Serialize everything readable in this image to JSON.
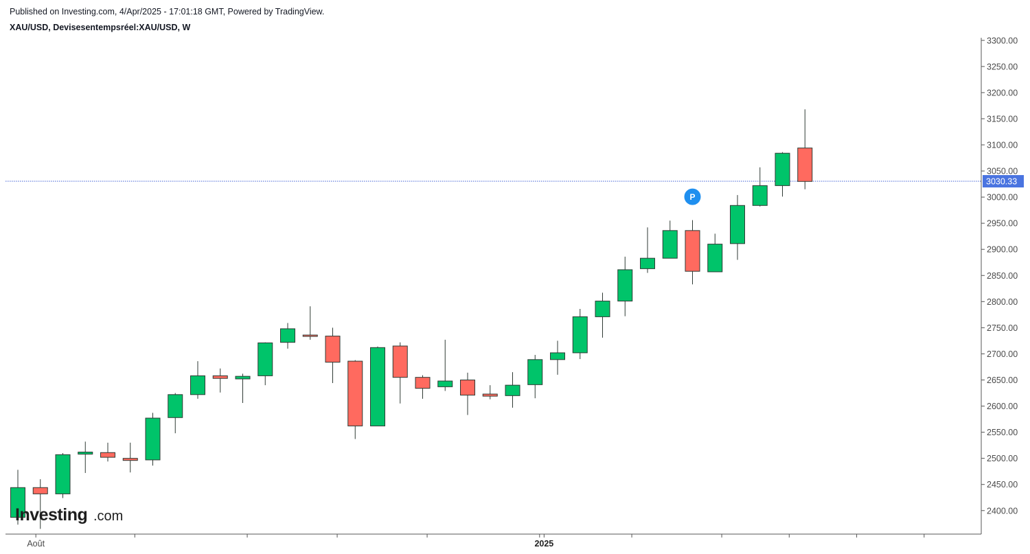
{
  "header": {
    "published": "Published on Investing.com, 4/Apr/2025 - 17:01:18 GMT, Powered by TradingView.",
    "symbol": "XAU/USD, Devisesentempsréel:XAU/USD, W"
  },
  "logo": {
    "main": "Investing",
    "suffix": ".com"
  },
  "colors": {
    "up": "#00c46a",
    "down": "#ff6a5f",
    "wick": "#2f3a34",
    "price_line": "#3f5fd6",
    "price_tag": "#4a74e0",
    "axis": "#555555",
    "marker": "#1f8fef"
  },
  "marker": {
    "label": "P",
    "candle_index": 30
  },
  "chart_data": {
    "type": "candlestick",
    "title": "",
    "xlabel": "",
    "ylabel": "",
    "ylim": [
      2355,
      3305
    ],
    "yticks": [
      2400,
      2450,
      2500,
      2550,
      2600,
      2650,
      2700,
      2750,
      2800,
      2850,
      2900,
      2950,
      3000,
      3050,
      3100,
      3150,
      3200,
      3250,
      3300
    ],
    "ytick_labels": [
      "2400.00",
      "2450.00",
      "2500.00",
      "2550.00",
      "2600.00",
      "2650.00",
      "2700.00",
      "2750.00",
      "2800.00",
      "2850.00",
      "2900.00",
      "2950.00",
      "3000.00",
      "3050.00",
      "3100.00",
      "3150.00",
      "3200.00",
      "3250.00",
      "3300.00"
    ],
    "x_labels": [
      {
        "text": "Août",
        "candle_index": 0.8,
        "bold": false
      },
      {
        "text": "2025",
        "candle_index": 23.4,
        "bold": true
      }
    ],
    "x_tick_marks": [
      5.2,
      10.2,
      14.2,
      18.2,
      23.2,
      27.3,
      31.3,
      34.3,
      37.3,
      40.3
    ],
    "current_price": 3030.33,
    "current_price_label": "3030.33",
    "candles": [
      {
        "o": 2387,
        "h": 2478,
        "l": 2373,
        "c": 2444
      },
      {
        "o": 2444,
        "h": 2460,
        "l": 2365,
        "c": 2432
      },
      {
        "o": 2432,
        "h": 2510,
        "l": 2424,
        "c": 2507
      },
      {
        "o": 2508,
        "h": 2532,
        "l": 2472,
        "c": 2512
      },
      {
        "o": 2511,
        "h": 2530,
        "l": 2494,
        "c": 2502
      },
      {
        "o": 2500,
        "h": 2530,
        "l": 2473,
        "c": 2496
      },
      {
        "o": 2497,
        "h": 2587,
        "l": 2486,
        "c": 2577
      },
      {
        "o": 2578,
        "h": 2625,
        "l": 2548,
        "c": 2622
      },
      {
        "o": 2622,
        "h": 2686,
        "l": 2614,
        "c": 2658
      },
      {
        "o": 2658,
        "h": 2672,
        "l": 2626,
        "c": 2653
      },
      {
        "o": 2652,
        "h": 2662,
        "l": 2606,
        "c": 2657
      },
      {
        "o": 2658,
        "h": 2722,
        "l": 2640,
        "c": 2721
      },
      {
        "o": 2722,
        "h": 2759,
        "l": 2710,
        "c": 2748
      },
      {
        "o": 2736,
        "h": 2791,
        "l": 2727,
        "c": 2735
      },
      {
        "o": 2734,
        "h": 2750,
        "l": 2644,
        "c": 2684
      },
      {
        "o": 2686,
        "h": 2688,
        "l": 2537,
        "c": 2562
      },
      {
        "o": 2562,
        "h": 2714,
        "l": 2562,
        "c": 2712
      },
      {
        "o": 2715,
        "h": 2722,
        "l": 2605,
        "c": 2655
      },
      {
        "o": 2655,
        "h": 2659,
        "l": 2614,
        "c": 2634
      },
      {
        "o": 2637,
        "h": 2727,
        "l": 2629,
        "c": 2648
      },
      {
        "o": 2650,
        "h": 2664,
        "l": 2583,
        "c": 2621
      },
      {
        "o": 2623,
        "h": 2640,
        "l": 2613,
        "c": 2619
      },
      {
        "o": 2620,
        "h": 2665,
        "l": 2597,
        "c": 2640
      },
      {
        "o": 2641,
        "h": 2698,
        "l": 2615,
        "c": 2689
      },
      {
        "o": 2689,
        "h": 2725,
        "l": 2660,
        "c": 2702
      },
      {
        "o": 2702,
        "h": 2786,
        "l": 2690,
        "c": 2771
      },
      {
        "o": 2771,
        "h": 2817,
        "l": 2731,
        "c": 2801
      },
      {
        "o": 2801,
        "h": 2886,
        "l": 2772,
        "c": 2861
      },
      {
        "o": 2863,
        "h": 2942,
        "l": 2855,
        "c": 2883
      },
      {
        "o": 2883,
        "h": 2955,
        "l": 2883,
        "c": 2936
      },
      {
        "o": 2936,
        "h": 2956,
        "l": 2833,
        "c": 2858
      },
      {
        "o": 2857,
        "h": 2930,
        "l": 2857,
        "c": 2910
      },
      {
        "o": 2911,
        "h": 3004,
        "l": 2880,
        "c": 2984
      },
      {
        "o": 2984,
        "h": 3057,
        "l": 2982,
        "c": 3022
      },
      {
        "o": 3022,
        "h": 3086,
        "l": 3001,
        "c": 3084
      },
      {
        "o": 3094,
        "h": 3168,
        "l": 3015,
        "c": 3030
      }
    ]
  }
}
